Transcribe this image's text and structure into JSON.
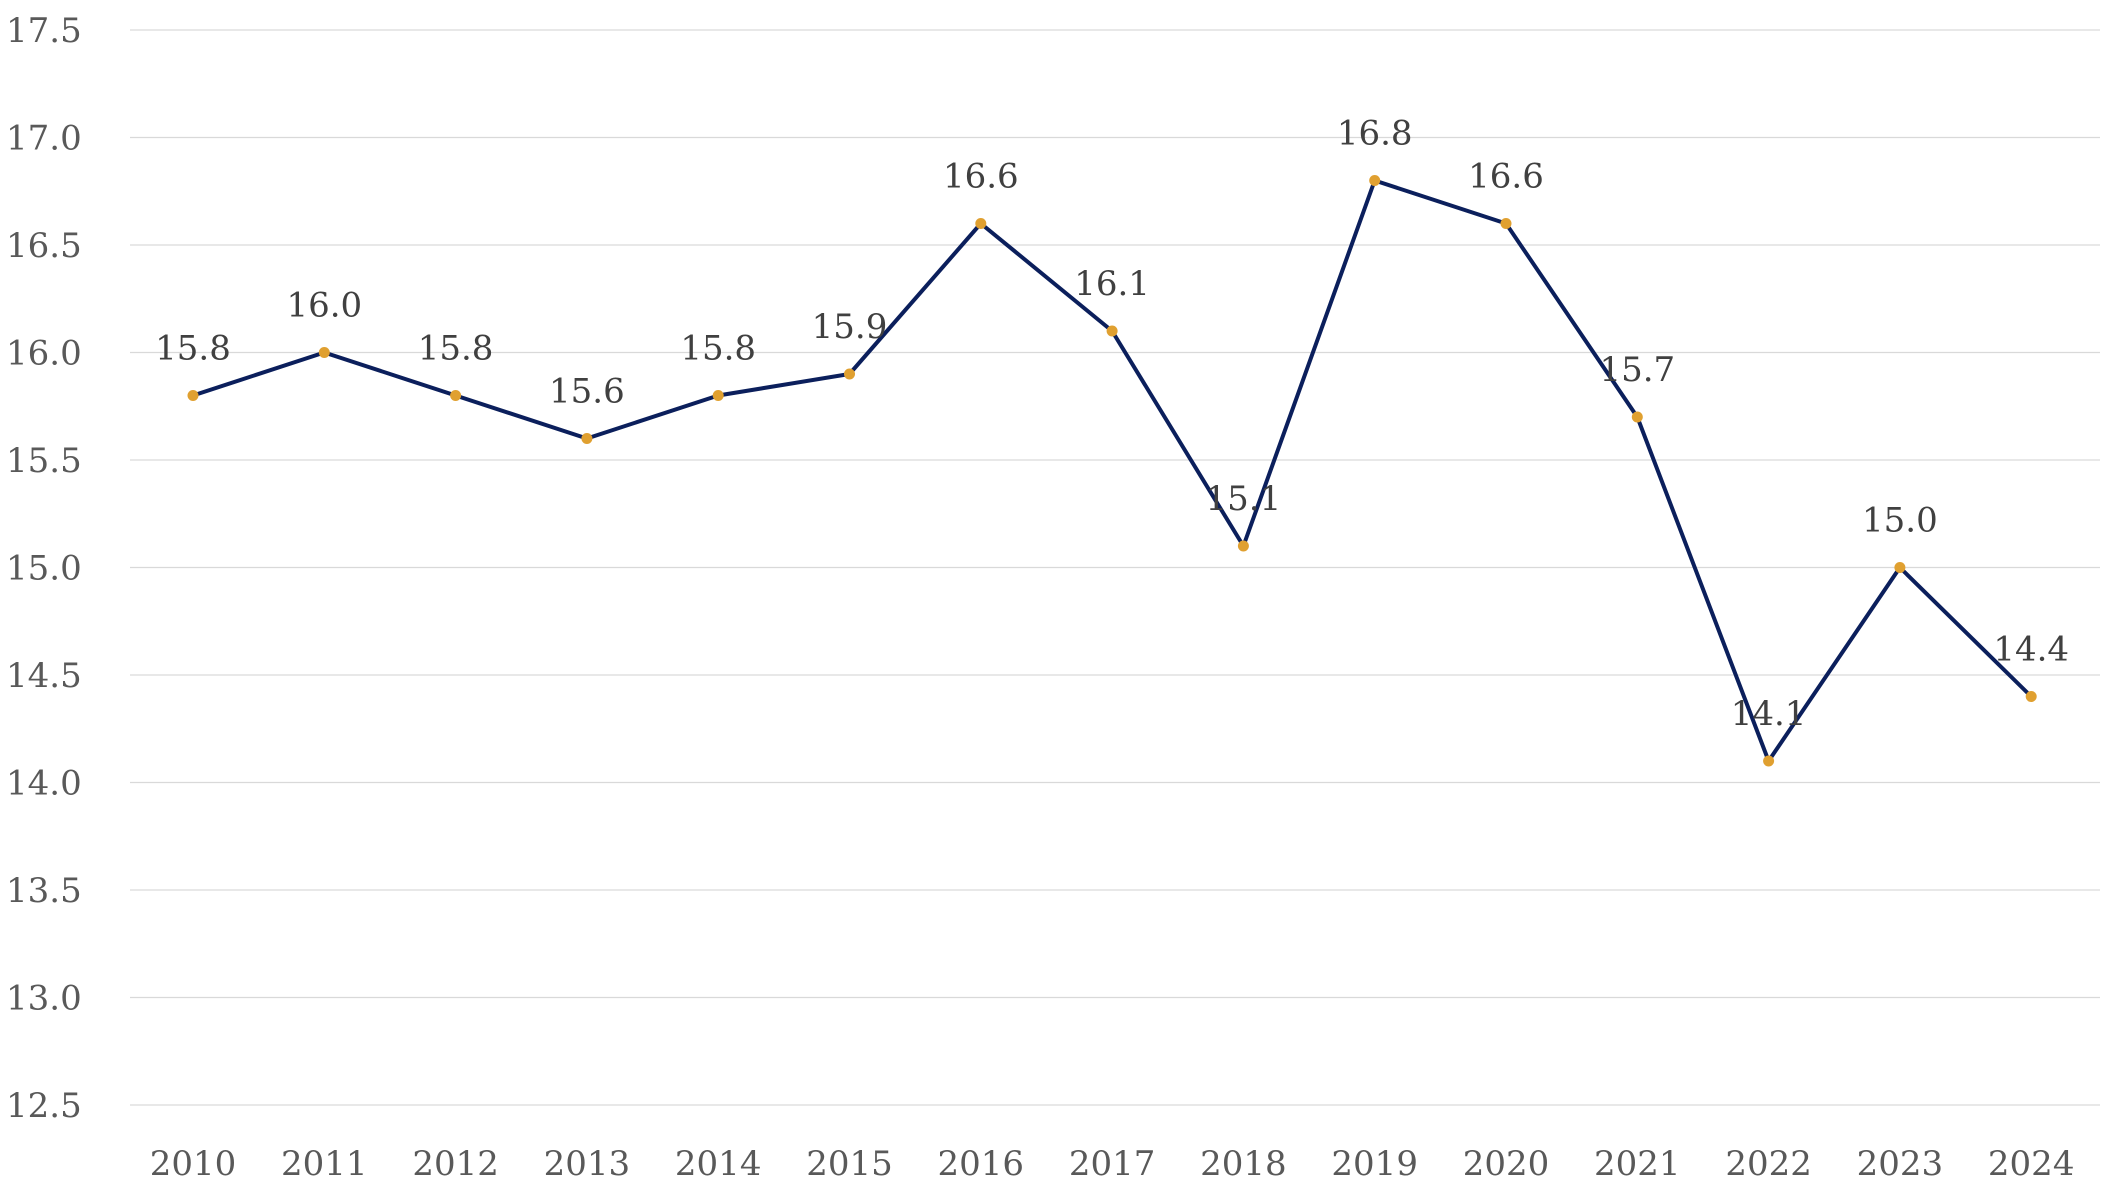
{
  "chart_data": {
    "type": "line",
    "title": "",
    "xlabel": "",
    "ylabel": "",
    "categories": [
      "2010",
      "2011",
      "2012",
      "2013",
      "2014",
      "2015",
      "2016",
      "2017",
      "2018",
      "2019",
      "2020",
      "2021",
      "2022",
      "2023",
      "2024"
    ],
    "series": [
      {
        "values": [
          15.8,
          16.0,
          15.8,
          15.6,
          15.8,
          15.9,
          16.6,
          16.1,
          15.1,
          16.8,
          16.6,
          15.7,
          14.1,
          15.0,
          14.4
        ],
        "labels": [
          "15.8",
          "16.0",
          "15.8",
          "15.6",
          "15.8",
          "15.9",
          "16.6",
          "16.1",
          "15.1",
          "16.8",
          "16.6",
          "15.7",
          "14.1",
          "15.0",
          "14.4"
        ]
      }
    ],
    "ylim": [
      12.5,
      17.5
    ],
    "y_ticks": [
      "12.5",
      "13.0",
      "13.5",
      "14.0",
      "14.5",
      "15.0",
      "15.5",
      "16.0",
      "16.5",
      "17.0",
      "17.5"
    ],
    "grid": true,
    "legend": "none",
    "colors": {
      "line": "#0b1f5c",
      "marker": "#e0a030",
      "grid": "#d9d9d9"
    }
  }
}
